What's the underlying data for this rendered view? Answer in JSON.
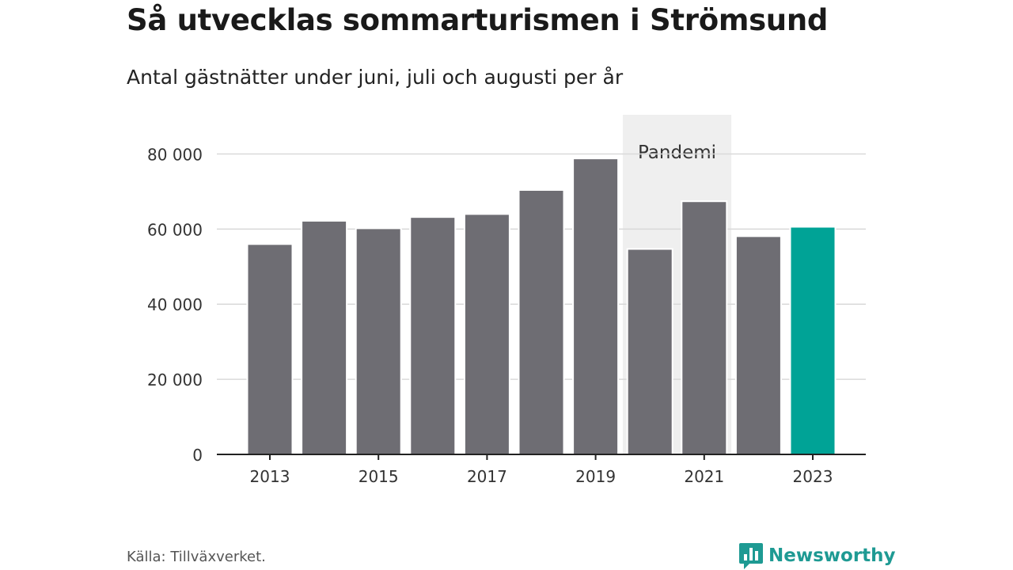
{
  "title": "Så utvecklas sommarturismen i Strömsund",
  "subtitle": "Antal gästnätter under juni, juli och augusti per år",
  "source": "Källa: Tillväxverket.",
  "brand": {
    "name": "Newsworthy",
    "icon": "bar-chart-speech-icon",
    "color": "#1e9a93"
  },
  "chart_data": {
    "type": "bar",
    "categories": [
      "2013",
      "2014",
      "2015",
      "2016",
      "2017",
      "2018",
      "2019",
      "2020",
      "2021",
      "2022",
      "2023"
    ],
    "values": [
      56000,
      62200,
      60200,
      63200,
      64000,
      70400,
      78800,
      54700,
      67400,
      58100,
      60600
    ],
    "bar_color": "#6e6d73",
    "highlight_color": "#00a396",
    "highlight_category": "2023",
    "ylim": [
      0,
      90000
    ],
    "yticks": [
      0,
      20000,
      40000,
      60000,
      80000
    ],
    "ytick_labels": [
      "0",
      "20 000",
      "40 000",
      "60 000",
      "80 000"
    ],
    "xtick_labels": [
      "2013",
      "2015",
      "2017",
      "2019",
      "2021",
      "2023"
    ],
    "grid": true,
    "xlabel": "",
    "ylabel": "",
    "annotation": {
      "label": "Pandemi",
      "from": "2020",
      "to": "2021",
      "color": "#efefef"
    }
  }
}
